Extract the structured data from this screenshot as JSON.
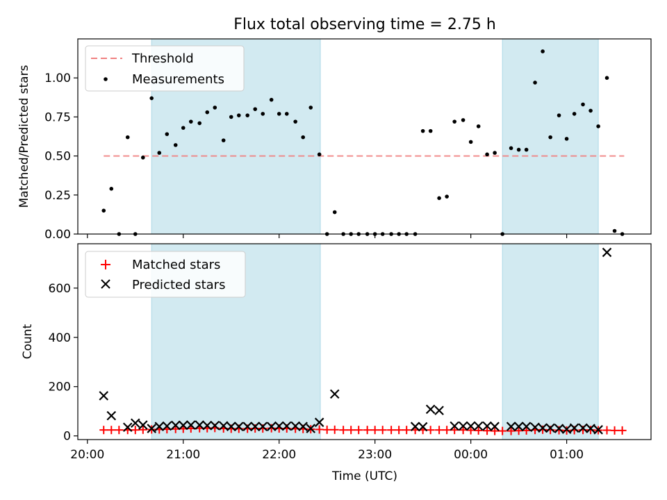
{
  "figure": {
    "title": "Flux total observing time = 2.75 h"
  },
  "chart_data": [
    {
      "type": "scatter",
      "title": "Flux total observing time = 2.75 h",
      "xlabel": "",
      "ylabel": "Matched/Predicted stars",
      "x_unit": "hours since 20:00 UTC",
      "xlim": [
        -0.1,
        5.88
      ],
      "ylim": [
        0,
        1.25
      ],
      "yticks": [
        0.0,
        0.25,
        0.5,
        0.75,
        1.0
      ],
      "ytick_labels": [
        "0.00",
        "0.25",
        "0.50",
        "0.75",
        "1.00"
      ],
      "shaded_intervals": [
        [
          0.67,
          2.43
        ],
        [
          4.33,
          5.33
        ]
      ],
      "shade_color": "#add8e6",
      "threshold": {
        "name": "Threshold",
        "value": 0.5,
        "x_start": 0.17,
        "x_end": 5.6,
        "color": "#f08080",
        "style": "dashed"
      },
      "legend": {
        "position": "top-left",
        "entries": [
          "Threshold",
          "Measurements"
        ]
      },
      "series": [
        {
          "name": "Measurements",
          "color": "#000000",
          "x": [
            0.17,
            0.25,
            0.33,
            0.42,
            0.5,
            0.58,
            0.67,
            0.75,
            0.83,
            0.92,
            1.0,
            1.08,
            1.17,
            1.25,
            1.33,
            1.42,
            1.5,
            1.58,
            1.67,
            1.75,
            1.83,
            1.92,
            2.0,
            2.08,
            2.17,
            2.25,
            2.33,
            2.42,
            2.5,
            2.58,
            2.67,
            2.75,
            2.83,
            2.92,
            3.0,
            3.08,
            3.17,
            3.25,
            3.33,
            3.42,
            3.5,
            3.58,
            3.67,
            3.75,
            3.83,
            3.92,
            4.0,
            4.08,
            4.17,
            4.25,
            4.33,
            4.42,
            4.5,
            4.58,
            4.67,
            4.75,
            4.83,
            4.92,
            5.0,
            5.08,
            5.17,
            5.25,
            5.33,
            5.42,
            5.5,
            5.58
          ],
          "y": [
            0.15,
            0.29,
            0.0,
            0.62,
            0.0,
            0.49,
            0.87,
            0.52,
            0.64,
            0.57,
            0.68,
            0.72,
            0.71,
            0.78,
            0.81,
            0.6,
            0.75,
            0.76,
            0.76,
            0.8,
            0.77,
            0.86,
            0.77,
            0.77,
            0.72,
            0.62,
            0.81,
            0.51,
            0.0,
            0.14,
            0.0,
            0.0,
            0.0,
            0.0,
            0.0,
            0.0,
            0.0,
            0.0,
            0.0,
            0.0,
            0.66,
            0.66,
            0.23,
            0.24,
            0.72,
            0.73,
            0.59,
            0.69,
            0.51,
            0.52,
            0.0,
            0.55,
            0.54,
            0.54,
            0.97,
            1.17,
            0.62,
            0.76,
            0.61,
            0.77,
            0.83,
            0.79,
            0.69,
            1.0,
            0.02,
            0.0
          ]
        }
      ]
    },
    {
      "type": "scatter",
      "title": "",
      "xlabel": "Time (UTC)",
      "ylabel": "Count",
      "x_unit": "hours since 20:00 UTC",
      "xlim": [
        -0.1,
        5.88
      ],
      "ylim": [
        -15,
        780
      ],
      "yticks": [
        0,
        200,
        400,
        600
      ],
      "ytick_labels": [
        "0",
        "200",
        "400",
        "600"
      ],
      "xticks": [
        0,
        1,
        2,
        3,
        4,
        5
      ],
      "xtick_labels": [
        "20:00",
        "21:00",
        "22:00",
        "23:00",
        "00:00",
        "01:00"
      ],
      "shaded_intervals": [
        [
          0.67,
          2.43
        ],
        [
          4.33,
          5.33
        ]
      ],
      "shade_color": "#add8e6",
      "legend": {
        "position": "top-left",
        "entries": [
          "Matched stars",
          "Predicted stars"
        ]
      },
      "series": [
        {
          "name": "Matched stars",
          "marker": "plus",
          "color": "#ff0000",
          "x": [
            0.17,
            0.25,
            0.33,
            0.42,
            0.5,
            0.58,
            0.67,
            0.75,
            0.83,
            0.92,
            1.0,
            1.08,
            1.17,
            1.25,
            1.33,
            1.42,
            1.5,
            1.58,
            1.67,
            1.75,
            1.83,
            1.92,
            2.0,
            2.08,
            2.17,
            2.25,
            2.33,
            2.42,
            2.5,
            2.58,
            2.67,
            2.75,
            2.83,
            2.92,
            3.0,
            3.08,
            3.17,
            3.25,
            3.33,
            3.42,
            3.5,
            3.58,
            3.67,
            3.75,
            3.83,
            3.92,
            4.0,
            4.08,
            4.17,
            4.25,
            4.33,
            4.42,
            4.5,
            4.58,
            4.67,
            4.75,
            4.83,
            4.92,
            5.0,
            5.08,
            5.17,
            5.25,
            5.33,
            5.42,
            5.5,
            5.58
          ],
          "y": [
            24,
            24,
            24,
            24,
            24,
            25,
            26,
            26,
            27,
            28,
            29,
            30,
            31,
            31,
            32,
            30,
            29,
            29,
            29,
            30,
            30,
            31,
            30,
            30,
            29,
            28,
            27,
            26,
            25,
            25,
            24,
            24,
            24,
            24,
            24,
            24,
            24,
            24,
            24,
            24,
            24,
            24,
            24,
            24,
            24,
            24,
            23,
            22,
            21,
            20,
            20,
            20,
            21,
            22,
            24,
            25,
            24,
            23,
            22,
            23,
            24,
            24,
            23,
            23,
            22,
            22
          ]
        },
        {
          "name": "Predicted stars",
          "marker": "x",
          "color": "#000000",
          "x": [
            0.17,
            0.25,
            0.42,
            0.5,
            0.58,
            0.67,
            0.75,
            0.83,
            0.92,
            1.0,
            1.08,
            1.17,
            1.25,
            1.33,
            1.42,
            1.5,
            1.58,
            1.67,
            1.75,
            1.83,
            1.92,
            2.0,
            2.08,
            2.17,
            2.25,
            2.33,
            2.42,
            2.58,
            3.42,
            3.5,
            3.58,
            3.67,
            3.83,
            3.92,
            4.0,
            4.08,
            4.17,
            4.25,
            4.42,
            4.5,
            4.58,
            4.67,
            4.75,
            4.83,
            4.92,
            5.0,
            5.08,
            5.17,
            5.25,
            5.33,
            5.42
          ],
          "y": [
            163,
            82,
            35,
            52,
            44,
            30,
            38,
            40,
            43,
            43,
            44,
            44,
            42,
            42,
            41,
            38,
            38,
            38,
            38,
            38,
            38,
            40,
            40,
            40,
            38,
            30,
            55,
            170,
            38,
            37,
            108,
            103,
            40,
            40,
            40,
            40,
            40,
            38,
            38,
            38,
            38,
            35,
            32,
            32,
            30,
            27,
            32,
            32,
            30,
            25,
            745
          ]
        }
      ]
    }
  ]
}
